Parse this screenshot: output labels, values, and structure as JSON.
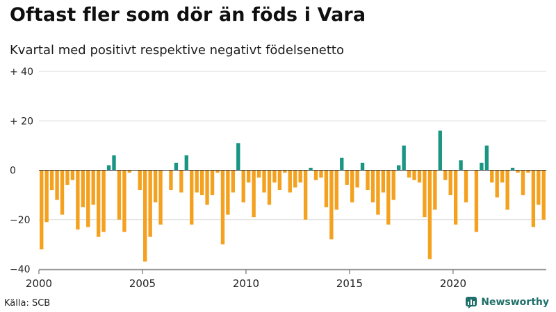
{
  "title": "Oftast fler som dör än föds i Vara",
  "subtitle": "Kvartal med positivt respektive negativt födelsenetto",
  "source": "Källa: SCB",
  "brand": {
    "name": "Newsworthy",
    "icon": "newsworthy-logo-icon"
  },
  "colors": {
    "positive": "#1a9583",
    "negative": "#f4a11f",
    "grid": "#d9d9d9",
    "zero": "#333333"
  },
  "chart_data": {
    "type": "bar",
    "title": "Oftast fler som dör än föds i Vara",
    "xlabel": "",
    "ylabel": "",
    "ylim": [
      -40,
      40
    ],
    "yticks": [
      {
        "value": 40,
        "label": "+ 40"
      },
      {
        "value": 20,
        "label": "+ 20"
      },
      {
        "value": 0,
        "label": "0"
      },
      {
        "value": -20,
        "label": "−20"
      },
      {
        "value": -40,
        "label": "−40"
      }
    ],
    "xticks": [
      {
        "year": 2000,
        "label": "2000"
      },
      {
        "year": 2005,
        "label": "2005"
      },
      {
        "year": 2010,
        "label": "2010"
      },
      {
        "year": 2015,
        "label": "2015"
      },
      {
        "year": 2020,
        "label": "2020"
      }
    ],
    "start_year": 2000,
    "quarters_per_year": 4,
    "values": [
      -32,
      -21,
      -8,
      -12,
      -18,
      -6,
      -4,
      -24,
      -15,
      -23,
      -14,
      -27,
      -25,
      2,
      6,
      -20,
      -25,
      -1,
      0,
      -8,
      -37,
      -27,
      -13,
      -22,
      0,
      -8,
      3,
      -9,
      6,
      -22,
      -9,
      -10,
      -14,
      -10,
      -1,
      -30,
      -18,
      -9,
      11,
      -13,
      -5,
      -19,
      -3,
      -9,
      -14,
      -5,
      -8,
      -1,
      -9,
      -7,
      -5,
      -20,
      1,
      -4,
      -3,
      -15,
      -28,
      -16,
      5,
      -6,
      -13,
      -7,
      3,
      -8,
      -13,
      -18,
      -9,
      -22,
      -12,
      2,
      10,
      -3,
      -4,
      -5,
      -19,
      -36,
      -16,
      16,
      -4,
      -10,
      -22,
      4,
      -13,
      0,
      -25,
      3,
      10,
      -5,
      -11,
      -5,
      -16,
      1,
      -1,
      -10,
      -1,
      -23,
      -14,
      -20
    ]
  }
}
